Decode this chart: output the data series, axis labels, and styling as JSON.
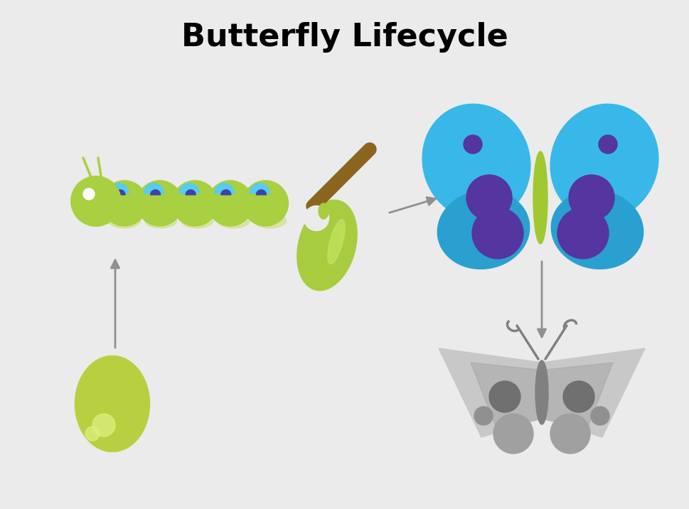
{
  "title": "Butterfly Lifecycle",
  "title_fontsize": 32,
  "title_fontweight": "bold",
  "background_color": "#ebebeb",
  "colors": {
    "green_bright": "#a8d040",
    "green_seg": "#9ecf38",
    "green_leg": "#c8e070",
    "blue_spot": "#55ccf0",
    "indigo_spot": "#4040aa",
    "blue_wing": "#38b8e8",
    "blue_wing_dark": "#2aa0d0",
    "purple_spot": "#5535a0",
    "green_body": "#a0c830",
    "egg_color": "#b8d040",
    "egg_highlight": "#ddf080",
    "pupa_green": "#a8cc40",
    "pupa_light": "#c8e868",
    "pupa_stick": "#8B6520",
    "dead_wing_light": "#c8c8c8",
    "dead_wing_dark": "#a0a0a0",
    "dead_body": "#808080",
    "dead_spot_large": "#707070",
    "dead_spot_small": "#909090",
    "arrow_color": "#909090"
  }
}
